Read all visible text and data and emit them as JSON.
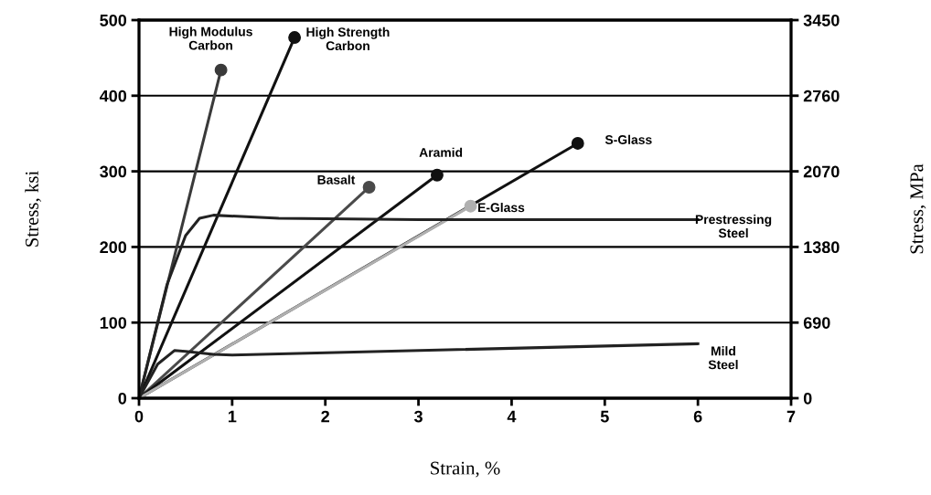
{
  "chart_data": {
    "type": "line",
    "xlabel": "Strain, %",
    "ylabel": "Stress, ksi",
    "y2label": "Stress, MPa",
    "xlim": [
      0,
      7
    ],
    "xticks": [
      0,
      1,
      2,
      3,
      4,
      5,
      6,
      7
    ],
    "ylim": [
      0,
      500
    ],
    "yticks": [
      0,
      100,
      200,
      300,
      400,
      500
    ],
    "y2lim": [
      0,
      3450
    ],
    "y2ticks": [
      0,
      690,
      1380,
      2070,
      2760,
      3450
    ],
    "grid": "y",
    "legend": false,
    "line_style": "solid",
    "series": [
      {
        "name": "High Modulus\nCarbon",
        "color": "#3a3a3a",
        "marker": "circle",
        "x": [
          0,
          0.88
        ],
        "values": [
          0,
          434
        ]
      },
      {
        "name": "High Strength\nCarbon",
        "color": "#111111",
        "marker": "circle",
        "x": [
          0,
          1.67
        ],
        "values": [
          0,
          477
        ]
      },
      {
        "name": "Basalt",
        "color": "#4a4a4a",
        "marker": "circle",
        "x": [
          0,
          2.47
        ],
        "values": [
          0,
          279
        ]
      },
      {
        "name": "Aramid",
        "color": "#111111",
        "marker": "circle",
        "x": [
          0,
          3.2
        ],
        "values": [
          0,
          295
        ]
      },
      {
        "name": "S-Glass",
        "color": "#111111",
        "marker": "circle",
        "x": [
          0,
          4.71
        ],
        "values": [
          0,
          337
        ]
      },
      {
        "name": "E-Glass",
        "color": "#b0b0b0",
        "marker": "circle",
        "x": [
          0,
          3.56
        ],
        "values": [
          0,
          254
        ]
      },
      {
        "name": "Prestressing\nSteel",
        "color": "#222222",
        "marker": "none",
        "x": [
          0,
          0.3,
          0.5,
          0.65,
          0.8,
          1.5,
          3,
          6
        ],
        "values": [
          0,
          150,
          215,
          238,
          242,
          238,
          236,
          236
        ]
      },
      {
        "name": "Mild\nSteel",
        "color": "#222222",
        "marker": "none",
        "x": [
          0,
          0.2,
          0.38,
          0.5,
          0.8,
          1,
          6
        ],
        "values": [
          0,
          45,
          63,
          62,
          58,
          57,
          72
        ]
      }
    ]
  }
}
